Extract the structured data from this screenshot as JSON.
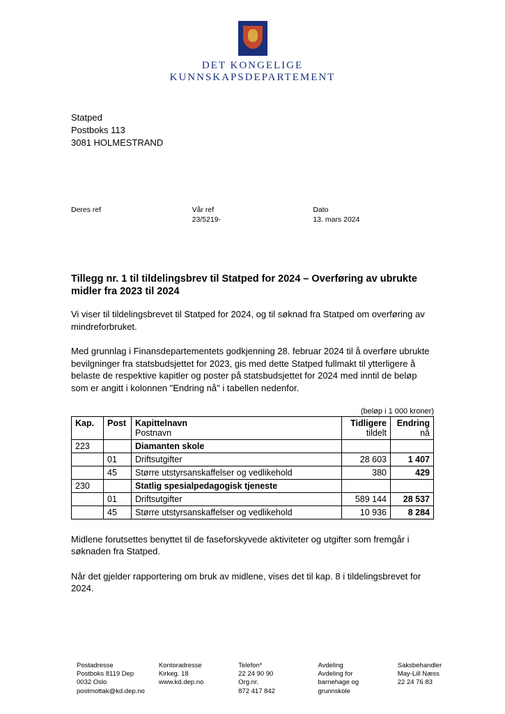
{
  "department": {
    "line1": "DET KONGELIGE",
    "line2": "KUNNSKAPSDEPARTEMENT"
  },
  "recipient": {
    "name": "Statped",
    "addr1": "Postboks 113",
    "addr2": "3081 HOLMESTRAND"
  },
  "refs": {
    "deres_label": "Deres ref",
    "deres_val": "",
    "vaar_label": "Vår ref",
    "vaar_val": "23/5219-",
    "dato_label": "Dato",
    "dato_val": "13. mars 2024"
  },
  "title": "Tillegg nr. 1 til tildelingsbrev til Statped for 2024 – Overføring av ubrukte midler fra 2023 til 2024",
  "para1": "Vi viser til tildelingsbrevet til Statped for 2024, og til søknad fra Statped om overføring av mindreforbruket.",
  "para2": "Med grunnlag i Finansdepartementets godkjenning 28. februar 2024 til å overføre ubrukte bevilgninger fra statsbudsjettet for 2023, gis med dette Statped fullmakt til ytterligere å belaste de respektive kapitler og poster på statsbudsjettet for 2024 med inntil de beløp som er angitt i kolonnen \"Endring nå\" i tabellen nedenfor.",
  "table": {
    "caption": "(beløp i 1 000 kroner)",
    "head": {
      "kap": "Kap.",
      "post": "Post",
      "name_top": "Kapittelnavn",
      "name_sub": "Postnavn",
      "prev_top": "Tidligere",
      "prev_sub": "tildelt",
      "chg_top": "Endring",
      "chg_sub": "nå"
    },
    "rows": [
      {
        "kap": "223",
        "post": "",
        "name": "Diamanten skole",
        "prev": "",
        "chg": "",
        "bold": true
      },
      {
        "kap": "",
        "post": "01",
        "name": "Driftsutgifter",
        "prev": "28 603",
        "chg": "1 407",
        "bold": false
      },
      {
        "kap": "",
        "post": "45",
        "name": "Større utstyrsanskaffelser og vedlikehold",
        "prev": "380",
        "chg": "429",
        "bold": false
      },
      {
        "kap": "230",
        "post": "",
        "name": "Statlig spesialpedagogisk tjeneste",
        "prev": "",
        "chg": "",
        "bold": true
      },
      {
        "kap": "",
        "post": "01",
        "name": "Driftsutgifter",
        "prev": "589 144",
        "chg": "28 537",
        "bold": false
      },
      {
        "kap": "",
        "post": "45",
        "name": "Større utstyrsanskaffelser og vedlikehold",
        "prev": "10 936",
        "chg": "8 284",
        "bold": false
      }
    ]
  },
  "para3": "Midlene forutsettes benyttet til de faseforskyvede aktiviteter og utgifter som fremgår i søknaden fra Statped.",
  "para4": "Når det gjelder rapportering om bruk av midlene, vises det til kap. 8 i tildelingsbrevet for 2024.",
  "footer": {
    "col1": {
      "h": "Postadresse",
      "l1": "Postboks 8119 Dep",
      "l2": "0032 Oslo",
      "l3": "postmottak@kd.dep.no"
    },
    "col2": {
      "h": "Kontoradresse",
      "l1": "Kirkeg. 18",
      "l2": "",
      "l3": "www.kd.dep.no"
    },
    "col3": {
      "h": "Telefon*",
      "l1": "22 24 90 90",
      "l2": "Org.nr.",
      "l3": "872 417 842"
    },
    "col4": {
      "h": "Avdeling",
      "l1": "Avdeling for",
      "l2": "barnehage og",
      "l3": "grunnskole"
    },
    "col5": {
      "h": "Saksbehandler",
      "l1": "May-Lill Næss",
      "l2": "22 24 76 83",
      "l3": ""
    }
  }
}
